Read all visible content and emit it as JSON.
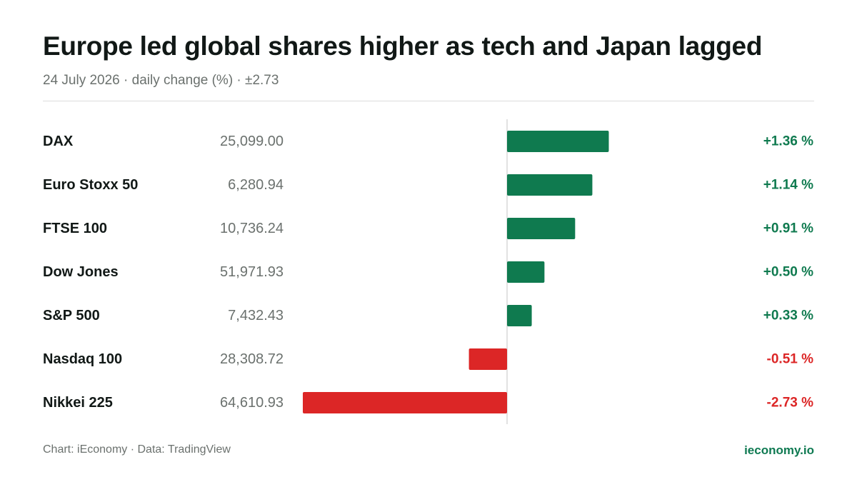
{
  "header": {
    "title": "Europe led global shares higher as tech and Japan lagged",
    "subtitle": "24 July 2026 · daily change (%) · ±2.73"
  },
  "footer": {
    "source": "Chart: iEconomy · Data: TradingView",
    "brand": "ieconomy.io"
  },
  "colors": {
    "positive": "#0f7a4f",
    "negative": "#dc2626",
    "positive_text": "#0f7a4f",
    "negative_text": "#dc2626",
    "axis": "#d9d9d9"
  },
  "chart_data": {
    "type": "bar",
    "orientation": "horizontal",
    "title": "Europe led global shares higher as tech and Japan lagged",
    "subtitle": "24 July 2026 · daily change (%) · ±2.73",
    "xlim": [
      -2.73,
      2.73
    ],
    "grid": false,
    "categories": [
      "DAX",
      "Euro Stoxx 50",
      "FTSE 100",
      "Dow Jones",
      "S&P 500",
      "Nasdaq 100",
      "Nikkei 225"
    ],
    "levels": [
      "25,099.00",
      "6,280.94",
      "10,736.24",
      "51,971.93",
      "7,432.43",
      "28,308.72",
      "64,610.93"
    ],
    "values": [
      1.36,
      1.14,
      0.91,
      0.5,
      0.33,
      -0.51,
      -2.73
    ],
    "value_labels": [
      "+1.36 %",
      "+1.14 %",
      "+0.91 %",
      "+0.50 %",
      "+0.33 %",
      "-0.51 %",
      "-2.73 %"
    ]
  }
}
